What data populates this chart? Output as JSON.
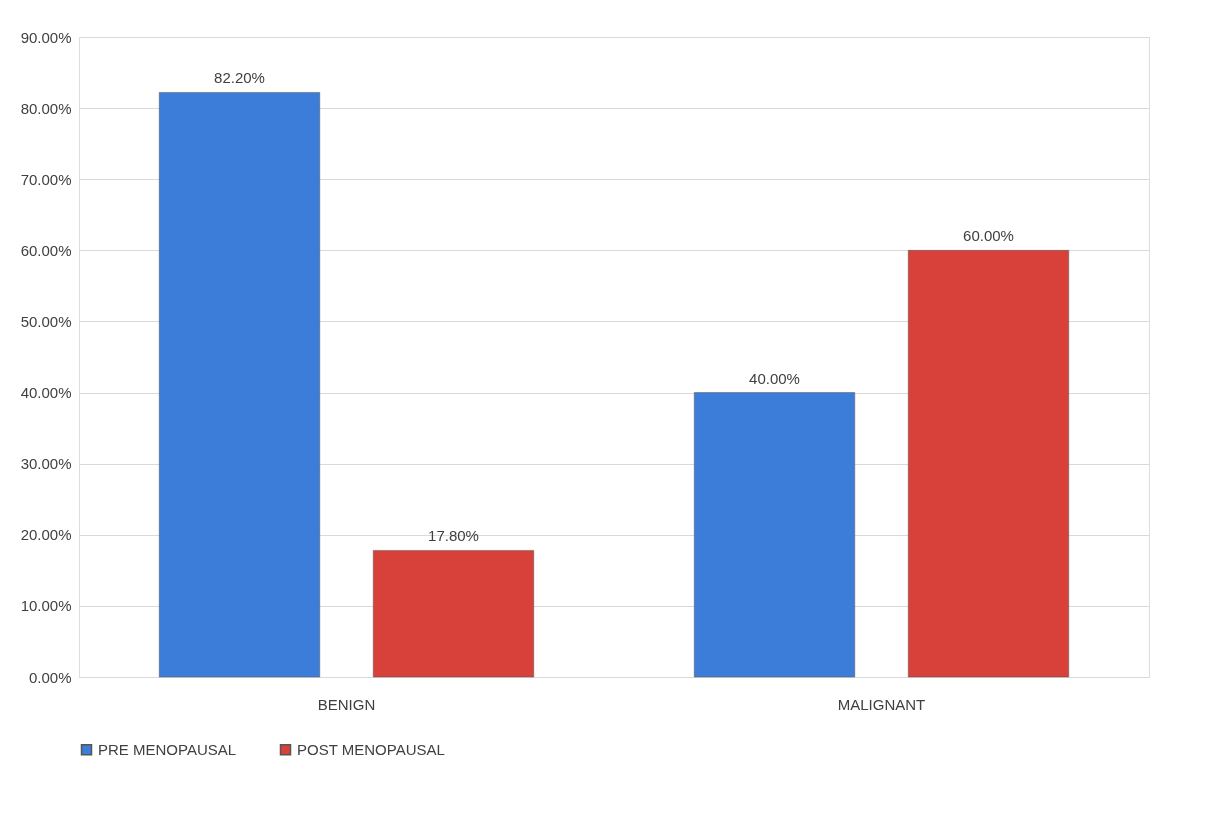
{
  "chart_data": {
    "type": "bar",
    "categories": [
      "BENIGN",
      "MALIGNANT"
    ],
    "series": [
      {
        "name": "PRE MENOPAUSAL",
        "color": "#3b7dd8",
        "values": [
          82.2,
          40.0
        ],
        "value_labels": [
          "82.20%",
          "40.00%"
        ]
      },
      {
        "name": "POST MENOPAUSAL",
        "color": "#d8403a",
        "values": [
          17.8,
          60.0
        ],
        "value_labels": [
          "17.80%",
          "60.00%"
        ]
      }
    ],
    "ylim": [
      0,
      90
    ],
    "yticks": [
      {
        "value": 0,
        "label": "0.00%"
      },
      {
        "value": 10,
        "label": "10.00%"
      },
      {
        "value": 20,
        "label": "20.00%"
      },
      {
        "value": 30,
        "label": "30.00%"
      },
      {
        "value": 40,
        "label": "40.00%"
      },
      {
        "value": 50,
        "label": "50.00%"
      },
      {
        "value": 60,
        "label": "60.00%"
      },
      {
        "value": 70,
        "label": "70.00%"
      },
      {
        "value": 80,
        "label": "80.00%"
      },
      {
        "value": 90,
        "label": "90.00%"
      }
    ],
    "grid": "y",
    "legend": "bottom"
  }
}
